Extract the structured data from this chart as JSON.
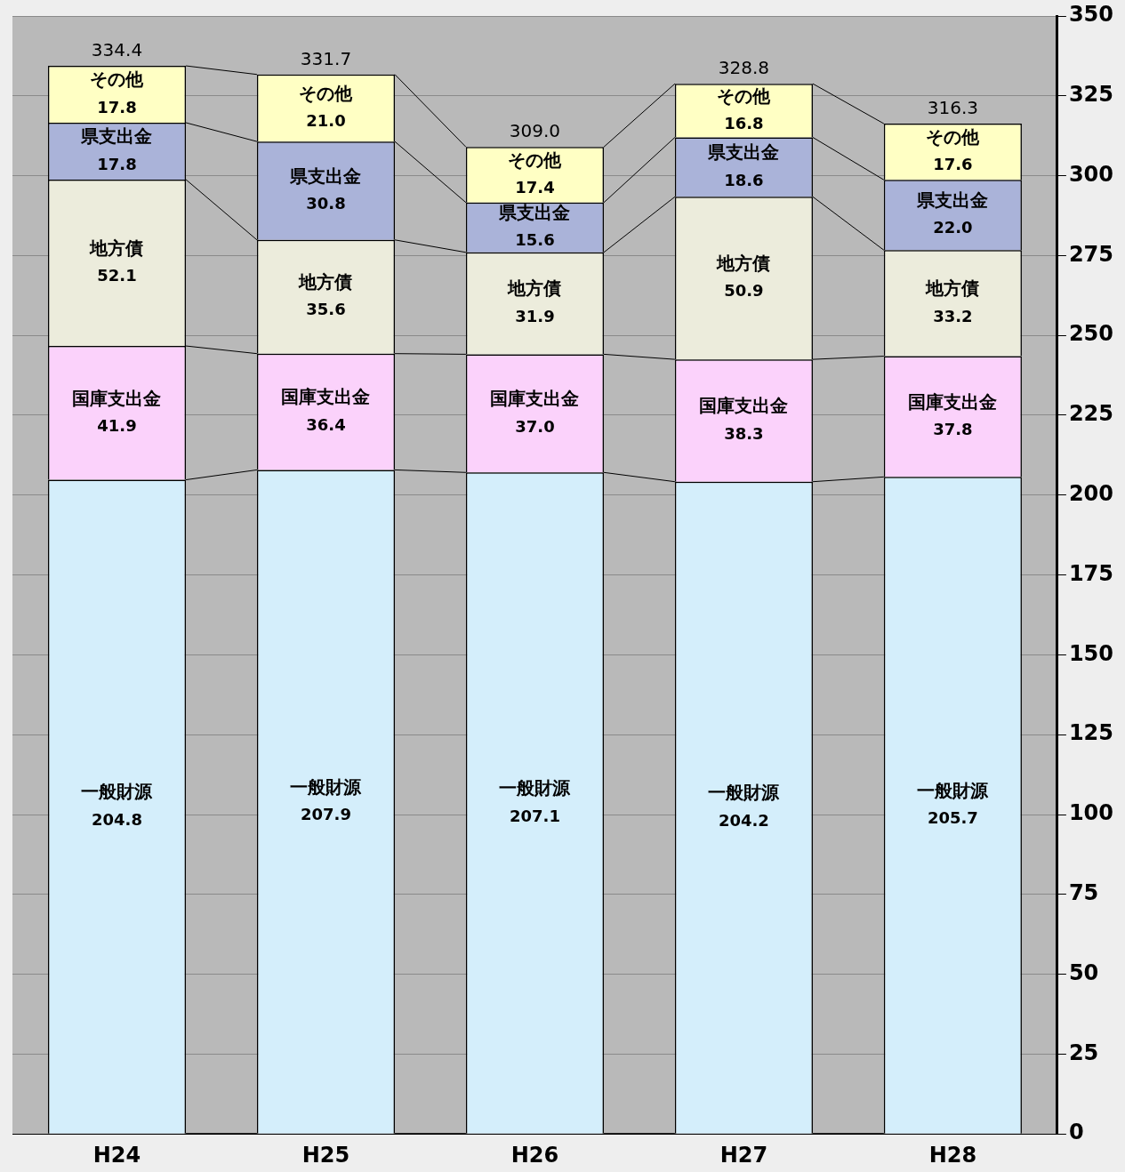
{
  "chart_data": {
    "type": "bar",
    "stacked": true,
    "categories": [
      "H24",
      "H25",
      "H26",
      "H27",
      "H28"
    ],
    "series": [
      {
        "name": "一般財源",
        "color": "#d4eefb",
        "values": [
          204.8,
          207.9,
          207.1,
          204.2,
          205.7
        ],
        "value_labels": [
          "204.8",
          "207.9",
          "207.1",
          "204.2",
          "205.7"
        ]
      },
      {
        "name": "国庫支出金",
        "color": "#fbd2fb",
        "values": [
          41.9,
          36.4,
          37.0,
          38.3,
          37.8
        ],
        "value_labels": [
          "41.9",
          "36.4",
          "37.0",
          "38.3",
          "37.8"
        ]
      },
      {
        "name": "地方債",
        "color": "#ececdc",
        "values": [
          52.1,
          35.6,
          31.9,
          50.9,
          33.2
        ],
        "value_labels": [
          "52.1",
          "35.6",
          "31.9",
          "50.9",
          "33.2"
        ]
      },
      {
        "name": "県支出金",
        "color": "#aab3d9",
        "values": [
          17.8,
          30.8,
          15.6,
          18.6,
          22.0
        ],
        "value_labels": [
          "17.8",
          "30.8",
          "15.6",
          "18.6",
          "22.0"
        ]
      },
      {
        "name": "その他",
        "color": "#ffffc4",
        "values": [
          17.8,
          21.0,
          17.4,
          16.8,
          17.6
        ],
        "value_labels": [
          "17.8",
          "21.0",
          "17.4",
          "16.8",
          "17.6"
        ]
      }
    ],
    "totals": [
      "334.4",
      "331.7",
      "309.0",
      "328.8",
      "316.3"
    ],
    "ylim": [
      0,
      350
    ],
    "yticks": [
      0,
      25,
      50,
      75,
      100,
      125,
      150,
      175,
      200,
      225,
      250,
      275,
      300,
      325,
      350
    ],
    "grid": "y",
    "legend": false
  }
}
